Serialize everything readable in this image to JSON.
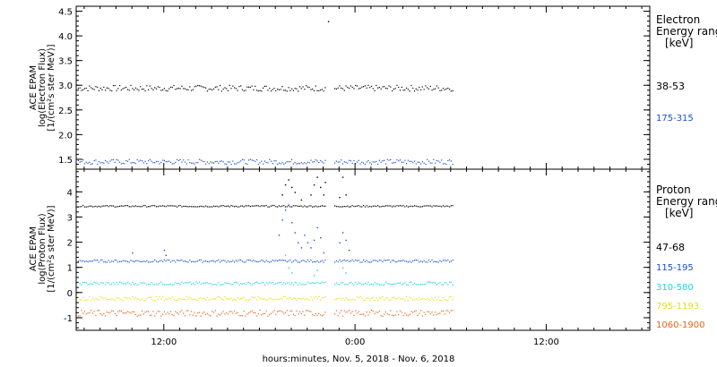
{
  "xaxis": {
    "label": "hours:minutes, Nov.  5, 2018 - Nov.  6, 2018",
    "range_hours": [
      6.5,
      42.5
    ],
    "ticks": [
      {
        "h": 12,
        "label": "12:00"
      },
      {
        "h": 24,
        "label": "0:00"
      },
      {
        "h": 36,
        "label": "12:00"
      }
    ],
    "minor_step_hours": 1
  },
  "chart_data": [
    {
      "type": "scatter",
      "panel": "electron",
      "ylabel_lines": [
        "ACE EPAM",
        "log(Electron Flux)",
        "[1/(cm²s ster MeV)]"
      ],
      "ylim": [
        1.3,
        4.6
      ],
      "yticks": [
        "1.5",
        "2.0",
        "2.5",
        "3.0",
        "3.5",
        "4.0",
        "4.5"
      ],
      "legend_title": [
        "Electron",
        "Energy ranges",
        "[keV]"
      ],
      "data_end_hours": 30.2,
      "gap_hours": [
        22.2,
        22.7
      ],
      "series": [
        {
          "name": "38-53",
          "color": "#000000",
          "level": 2.95,
          "noise": 0.06,
          "points": [
            {
              "x": 22.3,
              "y": 4.3
            }
          ]
        },
        {
          "name": "175-315",
          "color": "#1a4fd6",
          "level": 1.46,
          "noise": 0.05,
          "points": []
        }
      ]
    },
    {
      "type": "scatter",
      "panel": "proton",
      "ylabel_lines": [
        "ACE EPAM",
        "log(Proton Flux)",
        "[1/(cm²s ster MeV)]"
      ],
      "ylim": [
        -1.5,
        4.9
      ],
      "yticks": [
        "-1",
        "0",
        "1",
        "2",
        "3",
        "4"
      ],
      "legend_title": [
        "Proton",
        "Energy ranges",
        "[keV]"
      ],
      "data_end_hours": 30.2,
      "gap_hours": [
        22.2,
        22.7
      ],
      "series": [
        {
          "name": "47-68",
          "color": "#000000",
          "level": 3.45,
          "noise": 0.03,
          "points": [
            {
              "x": 19.4,
              "y": 3.9
            },
            {
              "x": 19.6,
              "y": 4.3
            },
            {
              "x": 19.8,
              "y": 4.5
            },
            {
              "x": 20.0,
              "y": 4.2
            },
            {
              "x": 20.2,
              "y": 4.0
            },
            {
              "x": 20.6,
              "y": 3.7
            },
            {
              "x": 21.2,
              "y": 3.9
            },
            {
              "x": 21.4,
              "y": 4.3
            },
            {
              "x": 21.6,
              "y": 4.6
            },
            {
              "x": 21.8,
              "y": 4.2
            },
            {
              "x": 22.0,
              "y": 3.9
            },
            {
              "x": 22.1,
              "y": 4.4
            },
            {
              "x": 23.0,
              "y": 3.8
            },
            {
              "x": 23.2,
              "y": 4.6
            },
            {
              "x": 23.4,
              "y": 3.9
            }
          ]
        },
        {
          "name": "115-195",
          "color": "#1a4fd6",
          "level": 1.27,
          "noise": 0.05,
          "points": [
            {
              "x": 10.0,
              "y": 1.6
            },
            {
              "x": 12.0,
              "y": 1.7
            },
            {
              "x": 12.1,
              "y": 1.5
            },
            {
              "x": 19.2,
              "y": 2.3
            },
            {
              "x": 19.4,
              "y": 2.9
            },
            {
              "x": 19.6,
              "y": 3.3
            },
            {
              "x": 19.8,
              "y": 3.5
            },
            {
              "x": 20.0,
              "y": 2.8
            },
            {
              "x": 20.2,
              "y": 2.4
            },
            {
              "x": 20.4,
              "y": 2.0
            },
            {
              "x": 20.6,
              "y": 1.8
            },
            {
              "x": 20.8,
              "y": 2.3
            },
            {
              "x": 21.0,
              "y": 2.0
            },
            {
              "x": 21.2,
              "y": 1.8
            },
            {
              "x": 21.4,
              "y": 2.1
            },
            {
              "x": 21.6,
              "y": 2.6
            },
            {
              "x": 21.8,
              "y": 2.2
            },
            {
              "x": 22.0,
              "y": 1.6
            },
            {
              "x": 23.0,
              "y": 2.0
            },
            {
              "x": 23.2,
              "y": 2.4
            },
            {
              "x": 23.4,
              "y": 2.1
            },
            {
              "x": 23.6,
              "y": 1.7
            }
          ]
        },
        {
          "name": "310-580",
          "color": "#22d3e0",
          "level": 0.38,
          "noise": 0.06,
          "points": [
            {
              "x": 19.6,
              "y": 1.5
            },
            {
              "x": 19.8,
              "y": 1.0
            },
            {
              "x": 20.0,
              "y": 0.8
            },
            {
              "x": 21.4,
              "y": 0.7
            },
            {
              "x": 21.6,
              "y": 0.9
            },
            {
              "x": 23.2,
              "y": 1.0
            },
            {
              "x": 23.4,
              "y": 0.8
            }
          ]
        },
        {
          "name": "795-1193",
          "color": "#e0e01a",
          "level": -0.22,
          "noise": 0.08,
          "points": []
        },
        {
          "name": "1060-1900",
          "color": "#e8641a",
          "level": -0.8,
          "noise": 0.12,
          "points": []
        }
      ]
    }
  ]
}
